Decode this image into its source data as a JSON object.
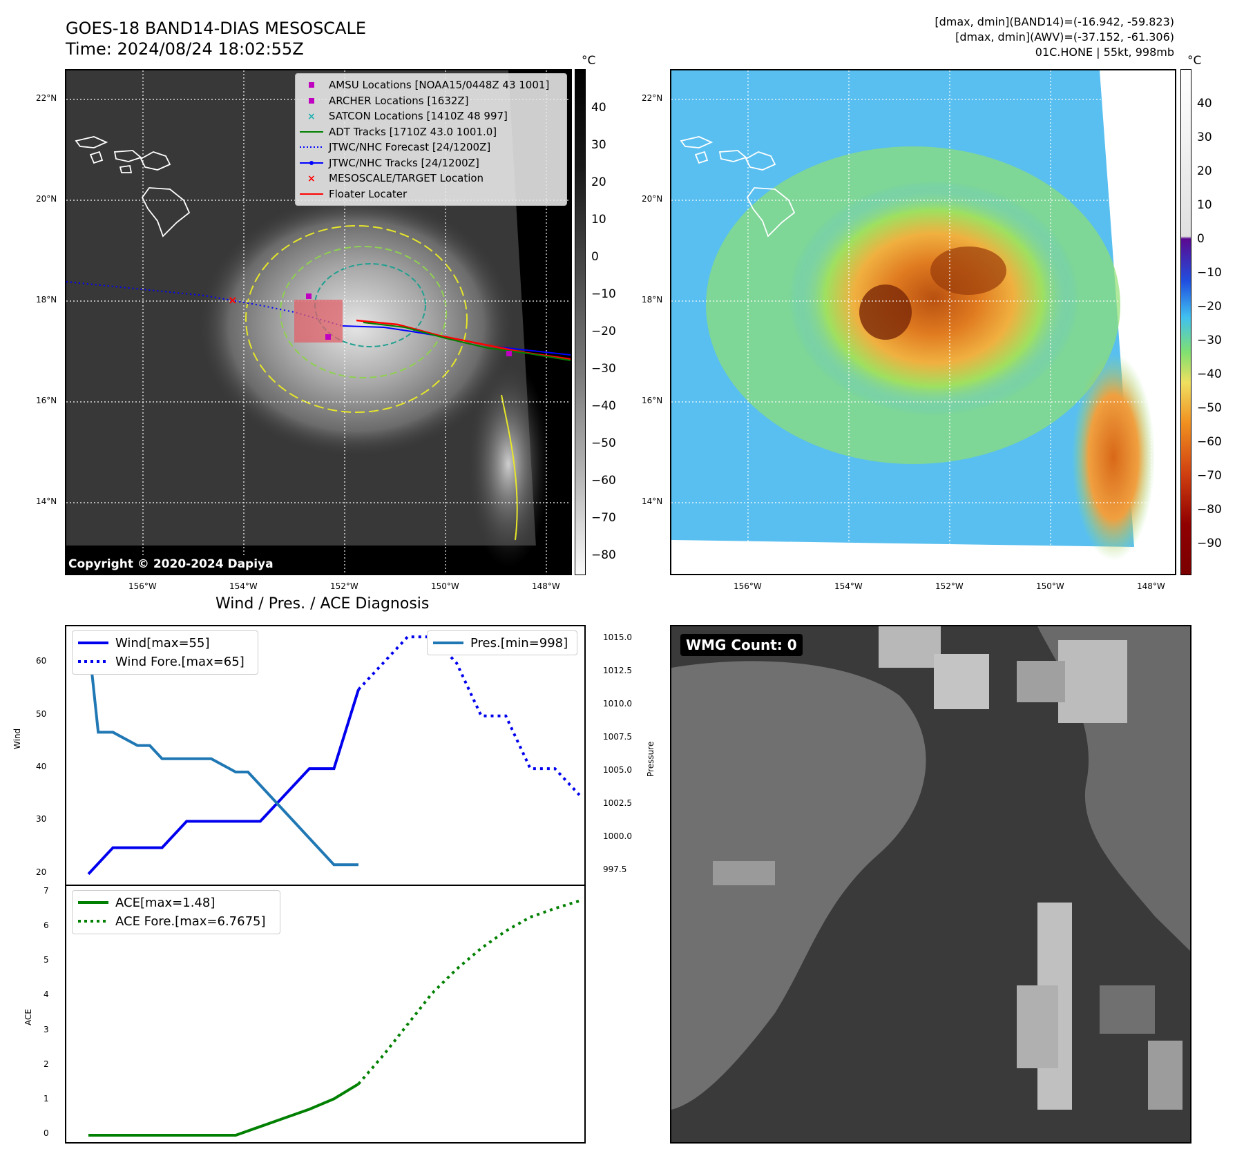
{
  "header": {
    "title_line1": "GOES-18 BAND14-DIAS MESOSCALE",
    "title_line2": "Time: 2024/08/24 18:02:55Z",
    "right_line1": "[dmax, dmin](BAND14)=(-16.942, -59.823)",
    "right_line2": "[dmax, dmin](AWV)=(-37.152, -61.306)",
    "right_line3": "01C.HONE | 55kt, 998mb"
  },
  "map_axes": {
    "lat_labels": [
      "22°N",
      "20°N",
      "18°N",
      "16°N",
      "14°N"
    ],
    "lon_labels": [
      "156°W",
      "154°W",
      "152°W",
      "150°W",
      "148°W"
    ]
  },
  "colorbar_left": {
    "unit": "°C",
    "ticks": [
      "40",
      "30",
      "20",
      "10",
      "0",
      "−10",
      "−20",
      "−30",
      "−40",
      "−50",
      "−60",
      "−70",
      "−80"
    ]
  },
  "colorbar_right": {
    "unit": "°C",
    "ticks": [
      "40",
      "30",
      "20",
      "10",
      "0",
      "−10",
      "−20",
      "−30",
      "−40",
      "−50",
      "−60",
      "−70",
      "−80",
      "−90"
    ]
  },
  "legend": {
    "items": [
      {
        "label": "AMSU Locations [NOAA15/0448Z 43 1001]",
        "color": "#c000c0",
        "kind": "square"
      },
      {
        "label": "ARCHER Locations [1632Z]",
        "color": "#c000c0",
        "kind": "square"
      },
      {
        "label": "SATCON Locations [1410Z 48 997]",
        "color": "#20b0b0",
        "kind": "x"
      },
      {
        "label": "ADT Tracks [1710Z 43.0 1001.0]",
        "color": "#008000",
        "kind": "line"
      },
      {
        "label": "JTWC/NHC Forecast [24/1200Z]",
        "color": "#0000ff",
        "kind": "dotted"
      },
      {
        "label": "JTWC/NHC Tracks [24/1200Z]",
        "color": "#0000ff",
        "kind": "linedot"
      },
      {
        "label": "MESOSCALE/TARGET Location",
        "color": "#ff0000",
        "kind": "x"
      },
      {
        "label": "Floater Locater",
        "color": "#ff0000",
        "kind": "line"
      }
    ]
  },
  "copyright": "Copyright © 2020-2024 Dapiya",
  "wmg": {
    "label": "WMG Count: 0"
  },
  "chart_data": [
    {
      "type": "line",
      "title": "Wind / Pres. / ACE Diagnosis",
      "ylabel": "Wind",
      "y2label": "Pressure",
      "ylim": [
        18,
        67
      ],
      "y2lim": [
        996.5,
        1016
      ],
      "yticks": [
        "60",
        "50",
        "40",
        "30",
        "20"
      ],
      "y2ticks": [
        "1015.0",
        "1012.5",
        "1010.0",
        "1007.5",
        "1005.0",
        "1002.5",
        "1000.0",
        "997.5"
      ],
      "x": [
        0,
        1,
        2,
        3,
        4,
        5,
        6,
        7,
        8,
        9,
        10,
        11,
        12,
        13,
        14,
        15,
        16,
        17,
        18,
        19,
        20
      ],
      "series": [
        {
          "name": "Wind[max=55]",
          "color": "#0000ee",
          "style": "solid",
          "x": [
            0,
            1,
            2,
            3,
            4,
            5,
            6,
            7,
            8,
            9,
            10,
            11
          ],
          "values": [
            20,
            25,
            25,
            25,
            30,
            30,
            30,
            30,
            35,
            40,
            40,
            55
          ]
        },
        {
          "name": "Wind Fore.[max=65]",
          "color": "#0000ee",
          "style": "dotted",
          "x": [
            11,
            12,
            13,
            14,
            15,
            16,
            17,
            18,
            19,
            20
          ],
          "values": [
            55,
            60,
            65,
            65,
            60,
            50,
            50,
            40,
            40,
            35
          ]
        },
        {
          "name": "Pres.[min=998]",
          "color": "#1f77b4",
          "style": "solid",
          "axis": "right",
          "x": [
            0,
            0.4,
            1,
            2,
            2.5,
            3,
            4,
            5,
            6,
            6.5,
            7,
            8,
            9,
            10,
            11
          ],
          "values": [
            1015,
            1008,
            1008,
            1007,
            1007,
            1006,
            1006,
            1006,
            1005,
            1005,
            1004,
            1002,
            1000,
            998,
            998
          ]
        }
      ]
    },
    {
      "type": "line",
      "ylabel": "ACE",
      "ylim": [
        -0.2,
        7.2
      ],
      "yticks": [
        "7",
        "6",
        "5",
        "4",
        "3",
        "2",
        "1",
        "0"
      ],
      "series": [
        {
          "name": "ACE[max=1.48]",
          "color": "#008000",
          "style": "solid",
          "x": [
            0,
            1,
            2,
            3,
            4,
            5,
            6,
            7,
            8,
            9,
            10,
            11
          ],
          "values": [
            0,
            0,
            0,
            0,
            0,
            0,
            0,
            0.25,
            0.5,
            0.75,
            1.05,
            1.48
          ]
        },
        {
          "name": "ACE Fore.[max=6.7675]",
          "color": "#008000",
          "style": "dotted",
          "x": [
            11,
            12,
            13,
            14,
            15,
            16,
            17,
            18,
            19,
            20
          ],
          "values": [
            1.48,
            2.3,
            3.2,
            4.1,
            4.8,
            5.4,
            5.9,
            6.3,
            6.55,
            6.77
          ]
        }
      ]
    }
  ]
}
